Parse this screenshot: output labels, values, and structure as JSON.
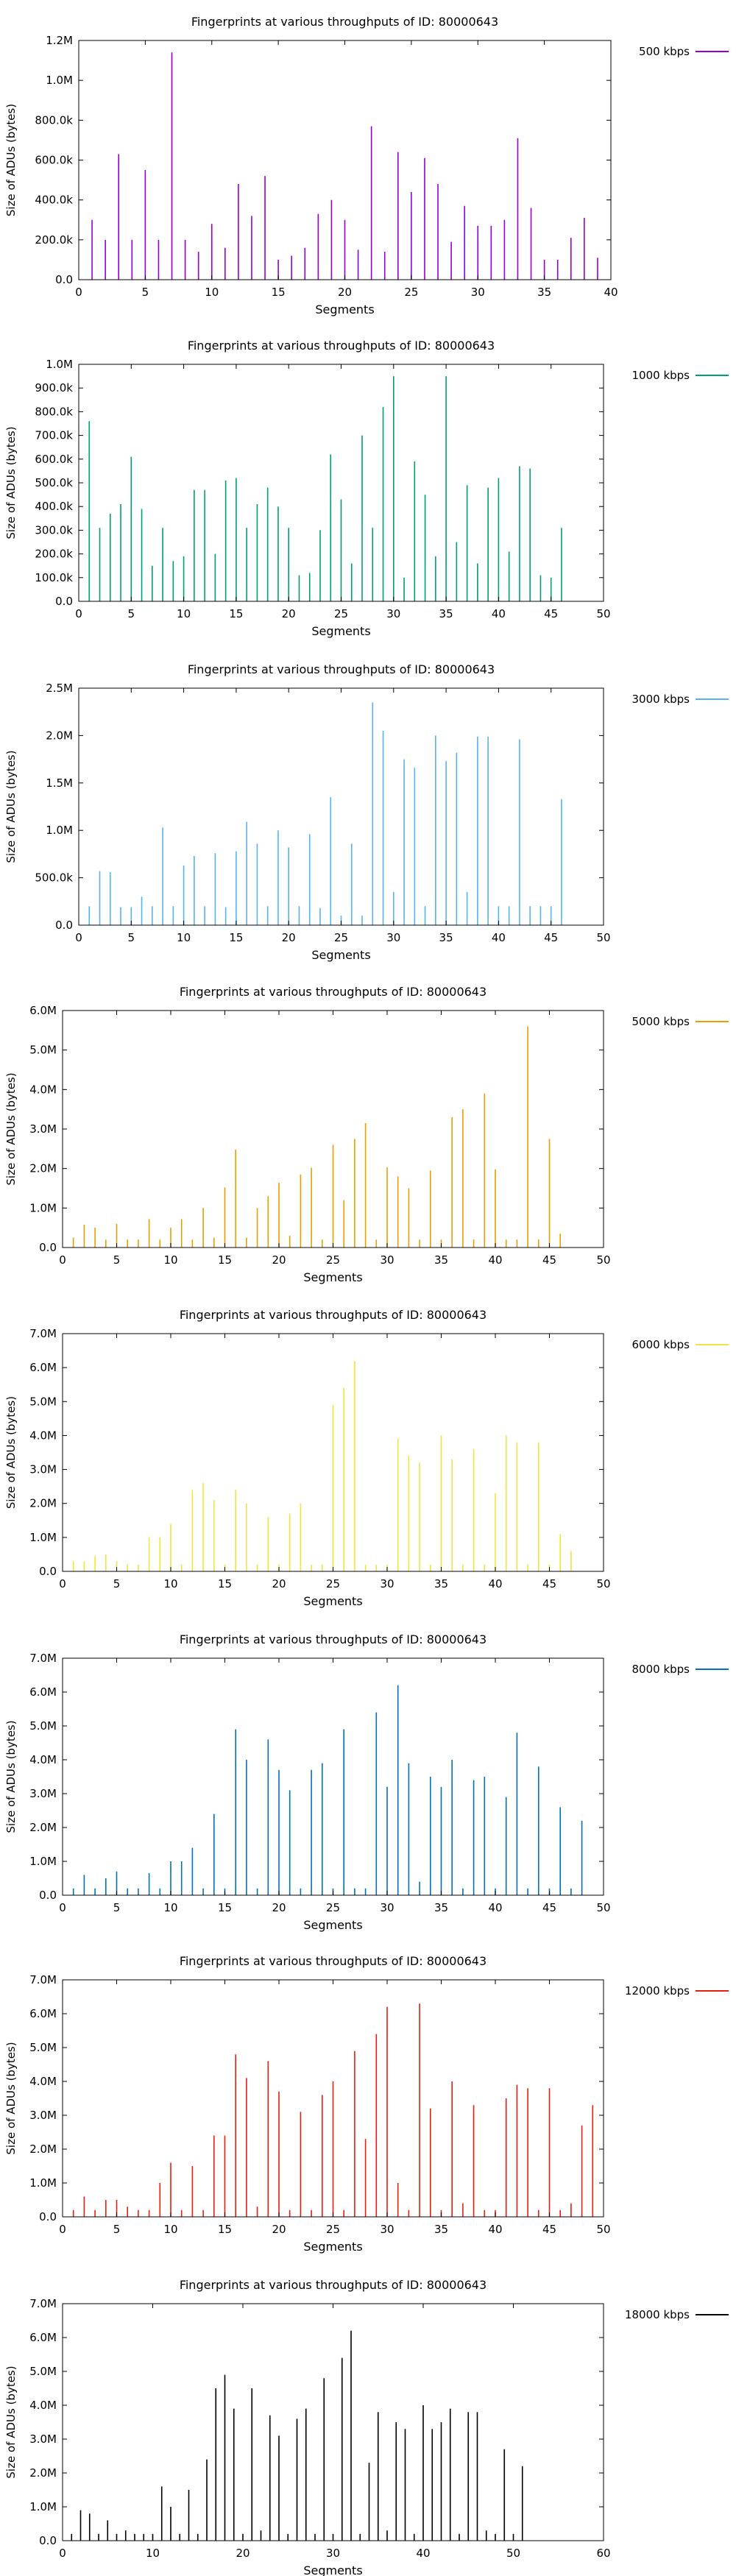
{
  "chart_data": [
    {
      "type": "bar",
      "title": "Fingerprints at various throughputs of ID: 80000643",
      "xlabel": "Segments",
      "ylabel": "Size of ADUs (bytes)",
      "legend": "500 kbps",
      "legend_position": "top-right outside",
      "color": "#9400d3",
      "xlim": [
        0,
        40
      ],
      "xticks": [
        "0",
        "5",
        "10",
        "15",
        "20",
        "25",
        "30",
        "35",
        "40"
      ],
      "ylim": [
        0,
        1200000
      ],
      "yticks": [
        "0.0",
        "200.0k",
        "400.0k",
        "600.0k",
        "800.0k",
        "1.0M",
        "1.2M"
      ],
      "grid": false,
      "x": [
        1,
        2,
        3,
        4,
        5,
        6,
        7,
        8,
        9,
        10,
        11,
        12,
        13,
        14,
        15,
        16,
        17,
        18,
        19,
        20,
        21,
        22,
        23,
        24,
        25,
        26,
        27,
        28,
        29,
        30,
        31,
        32,
        33,
        34,
        35,
        36,
        37,
        38,
        39
      ],
      "values": [
        300000,
        200000,
        630000,
        200000,
        550000,
        200000,
        1140000,
        200000,
        140000,
        280000,
        160000,
        480000,
        320000,
        520000,
        100000,
        120000,
        160000,
        330000,
        400000,
        300000,
        150000,
        770000,
        140000,
        640000,
        440000,
        610000,
        480000,
        190000,
        370000,
        270000,
        270000,
        300000,
        710000,
        360000,
        100000,
        100000,
        210000,
        310000,
        110000
      ]
    },
    {
      "type": "bar",
      "title": "Fingerprints at various throughputs of ID: 80000643",
      "xlabel": "Segments",
      "ylabel": "Size of ADUs (bytes)",
      "legend": "1000 kbps",
      "legend_position": "top-right outside",
      "color": "#009e73",
      "xlim": [
        0,
        50
      ],
      "xticks": [
        "0",
        "5",
        "10",
        "15",
        "20",
        "25",
        "30",
        "35",
        "40",
        "45",
        "50"
      ],
      "ylim": [
        0,
        1000000
      ],
      "yticks": [
        "0.0",
        "100.0k",
        "200.0k",
        "300.0k",
        "400.0k",
        "500.0k",
        "600.0k",
        "700.0k",
        "800.0k",
        "900.0k",
        "1.0M"
      ],
      "grid": false,
      "x": [
        1,
        2,
        3,
        4,
        5,
        6,
        7,
        8,
        9,
        10,
        11,
        12,
        13,
        14,
        15,
        16,
        17,
        18,
        19,
        20,
        21,
        22,
        23,
        24,
        25,
        26,
        27,
        28,
        29,
        30,
        31,
        32,
        33,
        34,
        35,
        36,
        37,
        38,
        39,
        40,
        41,
        42,
        43,
        44,
        45,
        46
      ],
      "values": [
        760000,
        310000,
        370000,
        410000,
        610000,
        390000,
        150000,
        310000,
        170000,
        190000,
        470000,
        470000,
        200000,
        510000,
        520000,
        310000,
        410000,
        480000,
        400000,
        310000,
        110000,
        120000,
        300000,
        620000,
        430000,
        160000,
        700000,
        310000,
        820000,
        950000,
        100000,
        590000,
        450000,
        190000,
        950000,
        250000,
        490000,
        160000,
        480000,
        520000,
        210000,
        570000,
        560000,
        110000,
        100000,
        310000
      ]
    },
    {
      "type": "bar",
      "title": "Fingerprints at various throughputs of ID: 80000643",
      "xlabel": "Segments",
      "ylabel": "Size of ADUs (bytes)",
      "legend": "3000 kbps",
      "legend_position": "top-right outside",
      "color": "#56b4e9",
      "xlim": [
        0,
        50
      ],
      "xticks": [
        "0",
        "5",
        "10",
        "15",
        "20",
        "25",
        "30",
        "35",
        "40",
        "45",
        "50"
      ],
      "ylim": [
        0,
        2500000
      ],
      "yticks": [
        "0.0",
        "500.0k",
        "1.0M",
        "1.5M",
        "2.0M",
        "2.5M"
      ],
      "grid": false,
      "x": [
        1,
        2,
        3,
        4,
        5,
        6,
        7,
        8,
        9,
        10,
        11,
        12,
        13,
        14,
        15,
        16,
        17,
        18,
        19,
        20,
        21,
        22,
        23,
        24,
        25,
        26,
        27,
        28,
        29,
        30,
        31,
        32,
        33,
        34,
        35,
        36,
        37,
        38,
        39,
        40,
        41,
        42,
        43,
        44,
        45,
        46
      ],
      "values": [
        200000,
        570000,
        560000,
        190000,
        190000,
        300000,
        200000,
        1030000,
        200000,
        630000,
        730000,
        200000,
        760000,
        190000,
        780000,
        1090000,
        860000,
        200000,
        1000000,
        820000,
        200000,
        960000,
        180000,
        1350000,
        100000,
        860000,
        100000,
        2350000,
        2050000,
        350000,
        1750000,
        1660000,
        200000,
        2000000,
        1730000,
        1820000,
        350000,
        1990000,
        1990000,
        200000,
        200000,
        1960000,
        200000,
        200000,
        200000,
        1330000
      ]
    },
    {
      "type": "bar",
      "title": "Fingerprints at various throughputs of ID: 80000643",
      "xlabel": "Segments",
      "ylabel": "Size of ADUs (bytes)",
      "legend": "5000 kbps",
      "legend_position": "top-right outside",
      "color": "#e69f00",
      "xlim": [
        0,
        50
      ],
      "xticks": [
        "0",
        "5",
        "10",
        "15",
        "20",
        "25",
        "30",
        "35",
        "40",
        "45",
        "50"
      ],
      "ylim": [
        0,
        6000000
      ],
      "yticks": [
        "0.0",
        "1.0M",
        "2.0M",
        "3.0M",
        "4.0M",
        "5.0M",
        "6.0M"
      ],
      "grid": false,
      "x": [
        1,
        2,
        3,
        4,
        5,
        6,
        7,
        8,
        9,
        10,
        11,
        12,
        13,
        14,
        15,
        16,
        17,
        18,
        19,
        20,
        21,
        22,
        23,
        24,
        25,
        26,
        27,
        28,
        29,
        30,
        31,
        32,
        33,
        34,
        35,
        36,
        37,
        38,
        39,
        40,
        41,
        42,
        43,
        44,
        45,
        46
      ],
      "values": [
        250000,
        580000,
        500000,
        200000,
        600000,
        200000,
        200000,
        720000,
        200000,
        500000,
        720000,
        200000,
        1000000,
        250000,
        1520000,
        2480000,
        250000,
        1000000,
        1300000,
        1640000,
        300000,
        1850000,
        2020000,
        200000,
        2600000,
        1200000,
        2750000,
        3150000,
        200000,
        2030000,
        1800000,
        1500000,
        200000,
        1950000,
        200000,
        3300000,
        3500000,
        200000,
        3900000,
        1980000,
        200000,
        200000,
        5600000,
        200000,
        2750000,
        350000
      ]
    },
    {
      "type": "bar",
      "title": "Fingerprints at various throughputs of ID: 80000643",
      "xlabel": "Segments",
      "ylabel": "Size of ADUs (bytes)",
      "legend": "6000 kbps",
      "legend_position": "top-right outside",
      "color": "#f0e442",
      "xlim": [
        0,
        50
      ],
      "xticks": [
        "0",
        "5",
        "10",
        "15",
        "20",
        "25",
        "30",
        "35",
        "40",
        "45",
        "50"
      ],
      "ylim": [
        0,
        7000000
      ],
      "yticks": [
        "0.0",
        "1.0M",
        "2.0M",
        "3.0M",
        "4.0M",
        "5.0M",
        "6.0M",
        "7.0M"
      ],
      "grid": false,
      "x": [
        1,
        2,
        3,
        4,
        5,
        6,
        7,
        8,
        9,
        10,
        11,
        12,
        13,
        14,
        15,
        16,
        17,
        18,
        19,
        20,
        21,
        22,
        23,
        24,
        25,
        26,
        27,
        28,
        29,
        30,
        31,
        32,
        33,
        34,
        35,
        36,
        37,
        38,
        39,
        40,
        41,
        42,
        43,
        44,
        45,
        46,
        47
      ],
      "values": [
        300000,
        300000,
        450000,
        500000,
        300000,
        200000,
        200000,
        1000000,
        1000000,
        1400000,
        200000,
        2400000,
        2600000,
        2100000,
        200000,
        2400000,
        2000000,
        200000,
        1600000,
        200000,
        1700000,
        2000000,
        200000,
        200000,
        4900000,
        5400000,
        6200000,
        200000,
        200000,
        200000,
        3900000,
        3400000,
        3200000,
        200000,
        4000000,
        3300000,
        200000,
        3600000,
        200000,
        2300000,
        4000000,
        3800000,
        200000,
        3800000,
        200000,
        1100000,
        600000
      ]
    },
    {
      "type": "bar",
      "title": "Fingerprints at various throughputs of ID: 80000643",
      "xlabel": "Segments",
      "ylabel": "Size of ADUs (bytes)",
      "legend": "8000 kbps",
      "legend_position": "top-right outside",
      "color": "#0072b2",
      "xlim": [
        0,
        50
      ],
      "xticks": [
        "0",
        "5",
        "10",
        "15",
        "20",
        "25",
        "30",
        "35",
        "40",
        "45",
        "50"
      ],
      "ylim": [
        0,
        7000000
      ],
      "yticks": [
        "0.0",
        "1.0M",
        "2.0M",
        "3.0M",
        "4.0M",
        "5.0M",
        "6.0M",
        "7.0M"
      ],
      "grid": false,
      "x": [
        1,
        2,
        3,
        4,
        5,
        6,
        7,
        8,
        9,
        10,
        11,
        12,
        13,
        14,
        15,
        16,
        17,
        18,
        19,
        20,
        21,
        22,
        23,
        24,
        25,
        26,
        27,
        28,
        29,
        30,
        31,
        32,
        33,
        34,
        35,
        36,
        37,
        38,
        39,
        40,
        41,
        42,
        43,
        44,
        45,
        46,
        47,
        48
      ],
      "values": [
        200000,
        600000,
        200000,
        500000,
        700000,
        200000,
        200000,
        650000,
        200000,
        1000000,
        1000000,
        1400000,
        200000,
        2400000,
        200000,
        4900000,
        4000000,
        200000,
        4600000,
        3700000,
        3100000,
        200000,
        3700000,
        3900000,
        200000,
        4900000,
        200000,
        200000,
        5400000,
        3200000,
        6200000,
        3900000,
        400000,
        3500000,
        3200000,
        4000000,
        200000,
        3400000,
        3500000,
        200000,
        2900000,
        4800000,
        200000,
        3800000,
        200000,
        2600000,
        200000,
        2200000
      ]
    },
    {
      "type": "bar",
      "title": "Fingerprints at various throughputs of ID: 80000643",
      "xlabel": "Segments",
      "ylabel": "Size of ADUs (bytes)",
      "legend": "12000 kbps",
      "legend_position": "top-right outside",
      "color": "#e51e10",
      "xlim": [
        0,
        50
      ],
      "xticks": [
        "0",
        "5",
        "10",
        "15",
        "20",
        "25",
        "30",
        "35",
        "40",
        "45",
        "50"
      ],
      "ylim": [
        0,
        7000000
      ],
      "yticks": [
        "0.0",
        "1.0M",
        "2.0M",
        "3.0M",
        "4.0M",
        "5.0M",
        "6.0M",
        "7.0M"
      ],
      "grid": false,
      "x": [
        1,
        2,
        3,
        4,
        5,
        6,
        7,
        8,
        9,
        10,
        11,
        12,
        13,
        14,
        15,
        16,
        17,
        18,
        19,
        20,
        21,
        22,
        23,
        24,
        25,
        26,
        27,
        28,
        29,
        30,
        31,
        32,
        33,
        34,
        35,
        36,
        37,
        38,
        39,
        40,
        41,
        42,
        43,
        44,
        45,
        46,
        47,
        48,
        49
      ],
      "values": [
        200000,
        600000,
        200000,
        500000,
        500000,
        300000,
        200000,
        200000,
        1000000,
        1600000,
        200000,
        1500000,
        200000,
        2400000,
        2400000,
        4800000,
        4100000,
        300000,
        4600000,
        3700000,
        200000,
        3100000,
        200000,
        3600000,
        4000000,
        200000,
        4900000,
        2300000,
        5400000,
        6200000,
        1000000,
        200000,
        6300000,
        3200000,
        200000,
        4000000,
        400000,
        3300000,
        200000,
        200000,
        3500000,
        3900000,
        3800000,
        200000,
        3800000,
        200000,
        400000,
        2700000,
        3300000
      ]
    },
    {
      "type": "bar",
      "title": "Fingerprints at various throughputs of ID: 80000643",
      "xlabel": "Segments",
      "ylabel": "Size of ADUs (bytes)",
      "legend": "18000 kbps",
      "legend_position": "top-right outside",
      "color": "#000000",
      "xlim": [
        0,
        60
      ],
      "xticks": [
        "0",
        "10",
        "20",
        "30",
        "40",
        "50",
        "60"
      ],
      "ylim": [
        0,
        7000000
      ],
      "yticks": [
        "0.0",
        "1.0M",
        "2.0M",
        "3.0M",
        "4.0M",
        "5.0M",
        "6.0M",
        "7.0M"
      ],
      "grid": false,
      "x": [
        1,
        2,
        3,
        4,
        5,
        6,
        7,
        8,
        9,
        10,
        11,
        12,
        13,
        14,
        15,
        16,
        17,
        18,
        19,
        20,
        21,
        22,
        23,
        24,
        25,
        26,
        27,
        28,
        29,
        30,
        31,
        32,
        33,
        34,
        35,
        36,
        37,
        38,
        39,
        40,
        41,
        42,
        43,
        44,
        45,
        46,
        47,
        48,
        49,
        50,
        51
      ],
      "values": [
        200000,
        900000,
        800000,
        200000,
        600000,
        200000,
        300000,
        200000,
        200000,
        200000,
        1600000,
        1000000,
        200000,
        1500000,
        200000,
        2400000,
        4500000,
        4900000,
        3900000,
        200000,
        4500000,
        300000,
        3700000,
        3100000,
        200000,
        3600000,
        3900000,
        200000,
        4800000,
        200000,
        5400000,
        6200000,
        200000,
        2300000,
        3800000,
        300000,
        3500000,
        3300000,
        200000,
        4000000,
        3300000,
        3500000,
        3900000,
        200000,
        3800000,
        3800000,
        300000,
        200000,
        2700000,
        200000,
        2200000
      ]
    }
  ]
}
